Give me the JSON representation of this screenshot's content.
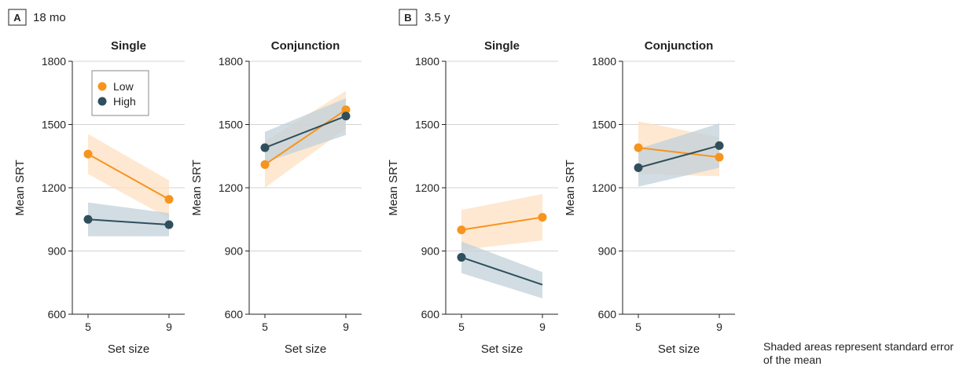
{
  "note": "Shaded areas represent standard error of the mean",
  "colors": {
    "low": "#f7941d",
    "high": "#2f4f5c",
    "low_band": "#fde0c2",
    "high_band": "#c2d1d9",
    "grid": "#d3d3d3",
    "axis": "#231f20"
  },
  "panels": [
    {
      "letter": "A",
      "label": "18 mo"
    },
    {
      "letter": "B",
      "label": "3.5 y"
    }
  ],
  "chart_data": [
    {
      "type": "line",
      "panel": "A",
      "title": "Single",
      "xlabel": "Set size",
      "ylabel": "Mean SRT",
      "x": [
        5,
        9
      ],
      "ylim": [
        600,
        1800
      ],
      "yticks": [
        600,
        900,
        1200,
        1500,
        1800
      ],
      "grid": "horizontal",
      "legend": {
        "position": "top-left",
        "entries": [
          "Low",
          "High"
        ]
      },
      "series": [
        {
          "name": "Low",
          "values": [
            1360,
            1145
          ],
          "lower": [
            1265,
            1055
          ],
          "upper": [
            1455,
            1235
          ]
        },
        {
          "name": "High",
          "values": [
            1050,
            1025
          ],
          "lower": [
            970,
            970
          ],
          "upper": [
            1130,
            1080
          ]
        }
      ]
    },
    {
      "type": "line",
      "panel": "A",
      "title": "Conjunction",
      "xlabel": "Set size",
      "ylabel": "Mean SRT",
      "x": [
        5,
        9
      ],
      "ylim": [
        600,
        1800
      ],
      "yticks": [
        600,
        900,
        1200,
        1500,
        1800
      ],
      "grid": "horizontal",
      "series": [
        {
          "name": "Low",
          "values": [
            1310,
            1570
          ],
          "lower": [
            1200,
            1480
          ],
          "upper": [
            1420,
            1660
          ]
        },
        {
          "name": "High",
          "values": [
            1390,
            1540
          ],
          "lower": [
            1320,
            1450
          ],
          "upper": [
            1465,
            1625
          ]
        }
      ]
    },
    {
      "type": "line",
      "panel": "B",
      "title": "Single",
      "xlabel": "Set size",
      "ylabel": "Mean SRT",
      "x": [
        5,
        9
      ],
      "ylim": [
        600,
        1800
      ],
      "yticks": [
        600,
        900,
        1200,
        1500,
        1800
      ],
      "grid": "horizontal",
      "series": [
        {
          "name": "Low",
          "values": [
            1000,
            1060
          ],
          "lower": [
            905,
            950
          ],
          "upper": [
            1095,
            1170
          ]
        },
        {
          "name": "High",
          "values": [
            870,
            740
          ],
          "lower": [
            795,
            675
          ],
          "upper": [
            945,
            800
          ]
        }
      ]
    },
    {
      "type": "line",
      "panel": "B",
      "title": "Conjunction",
      "xlabel": "Set size",
      "ylabel": "Mean SRT",
      "x": [
        5,
        9
      ],
      "ylim": [
        600,
        1800
      ],
      "yticks": [
        600,
        900,
        1200,
        1500,
        1800
      ],
      "grid": "horizontal",
      "series": [
        {
          "name": "Low",
          "values": [
            1390,
            1345
          ],
          "lower": [
            1265,
            1255
          ],
          "upper": [
            1515,
            1440
          ]
        },
        {
          "name": "High",
          "values": [
            1295,
            1400
          ],
          "lower": [
            1205,
            1295
          ],
          "upper": [
            1385,
            1505
          ]
        }
      ]
    }
  ]
}
